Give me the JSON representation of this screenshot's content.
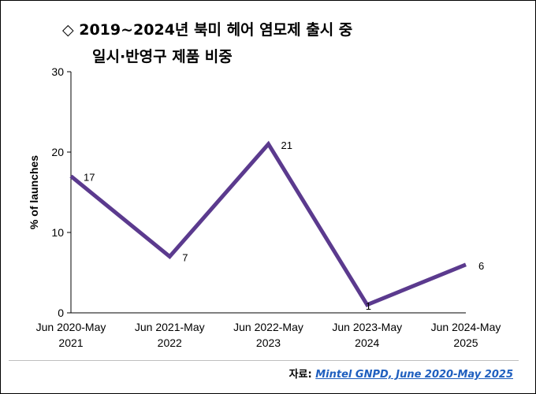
{
  "title": {
    "line1": "◇ 2019~2024년 북미 헤어 염모제 출시 중",
    "line2": "일시·반영구 제품 비중"
  },
  "source": {
    "label": "자료: ",
    "text": "Mintel GNPD, June 2020-May 2025"
  },
  "chart_data": {
    "type": "line",
    "categories": [
      [
        "Jun 2020-May",
        "2021"
      ],
      [
        "Jun 2021-May",
        "2022"
      ],
      [
        "Jun 2022-May",
        "2023"
      ],
      [
        "Jun 2023-May",
        "2024"
      ],
      [
        "Jun 2024-May",
        "2025"
      ]
    ],
    "values": [
      17,
      7,
      21,
      1,
      6
    ],
    "data_labels": [
      "17",
      "7",
      "21",
      "1",
      "6"
    ],
    "ylabel": "% of launches",
    "ylim": [
      0,
      30
    ],
    "yticks": [
      0,
      10,
      20,
      30
    ],
    "line_color": "#5b3a8e",
    "grid": false,
    "legend": "none"
  }
}
